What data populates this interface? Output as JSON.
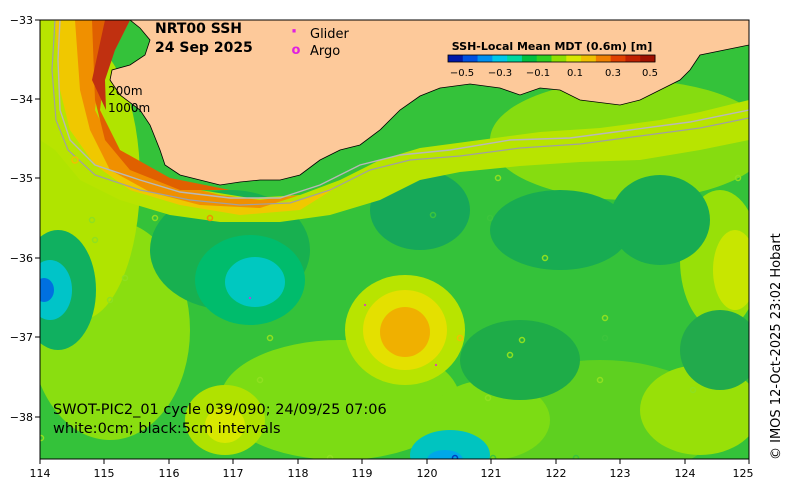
{
  "title": {
    "line1": "NRT00 SSH",
    "line2": "24 Sep 2025"
  },
  "legend": {
    "glider_marker": "·",
    "glider_label": "Glider",
    "argo_marker": "o",
    "argo_label": "Argo",
    "glider_color": "#e020e0",
    "argo_color": "#e020e0"
  },
  "colorbar": {
    "label": "SSH-Local Mean MDT (0.6m) [m]",
    "ticks": [
      "−0.5",
      "−0.3",
      "−0.1",
      "0.1",
      "0.3",
      "0.5"
    ],
    "colors": [
      "#0018a8",
      "#0050e0",
      "#0090f0",
      "#00c8e8",
      "#00d8a0",
      "#00c040",
      "#30d020",
      "#90e000",
      "#d8e800",
      "#f0c000",
      "#f08000",
      "#e04000",
      "#c02000",
      "#a01000"
    ]
  },
  "isobaths": {
    "shallow": "200m",
    "deep": "1000m"
  },
  "axes": {
    "x_ticks": [
      "114",
      "115",
      "116",
      "117",
      "118",
      "119",
      "120",
      "121",
      "122",
      "123",
      "124",
      "125"
    ],
    "y_ticks": [
      "−33",
      "−34",
      "−35",
      "−36",
      "−37",
      "−38"
    ]
  },
  "info": {
    "line1": "SWOT-PIC2_01 cycle 039/090; 24/09/25 07:06",
    "line2": "white:0cm; black:5cm intervals"
  },
  "credit": "© IMOS 12-Oct-2025 23:02 Hobart",
  "colors": {
    "land": "#fdc99a",
    "sea_base": "#3cc43c",
    "frame": "#000000"
  }
}
